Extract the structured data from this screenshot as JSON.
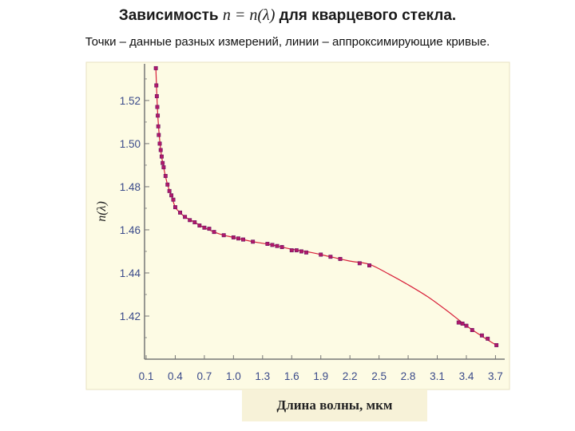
{
  "slide": {
    "title_prefix": "Зависимость ",
    "title_formula": "n = n(λ)",
    "title_suffix": " для кварцевого стекла.",
    "subtitle": "Точки – данные разных измерений, линии – аппроксимирующие кривые."
  },
  "colors": {
    "plot_background": "#fdfbe4",
    "axis": "#777777",
    "curve": "#d8203a",
    "points": "#b0186a",
    "tick_text": "#3a4a8a",
    "xlabel_box": "#f7f2d8"
  },
  "chart_data": {
    "type": "scatter",
    "title": "",
    "xlabel": "Длина волны, мкм",
    "ylabel": "n(λ)",
    "xlim": [
      0.1,
      3.75
    ],
    "ylim": [
      1.4,
      1.537
    ],
    "x_ticks": [
      "0.1",
      "0.4",
      "0.7",
      "1.0",
      "1.3",
      "1.6",
      "1.9",
      "2.2",
      "2.5",
      "2.8",
      "3.1",
      "3.4",
      "3.7"
    ],
    "y_ticks": [
      "1.42",
      "1.44",
      "1.46",
      "1.48",
      "1.50",
      "1.52"
    ],
    "grid": false,
    "series": [
      {
        "kind": "points",
        "x": [
          0.2,
          0.205,
          0.21,
          0.215,
          0.22,
          0.225,
          0.23,
          0.24,
          0.25,
          0.26,
          0.27,
          0.28,
          0.3,
          0.32,
          0.34,
          0.36,
          0.38,
          0.4,
          0.45,
          0.5,
          0.55,
          0.6,
          0.65,
          0.7,
          0.75,
          0.8,
          0.9,
          1.0,
          1.05,
          1.1,
          1.2,
          1.35,
          1.4,
          1.45,
          1.5,
          1.6,
          1.65,
          1.7,
          1.75,
          1.9,
          2.0,
          2.1,
          2.3,
          2.4,
          3.32,
          3.36,
          3.4,
          3.46,
          3.56,
          3.62,
          3.71
        ],
        "y": [
          1.535,
          1.527,
          1.522,
          1.517,
          1.513,
          1.508,
          1.504,
          1.5,
          1.497,
          1.494,
          1.491,
          1.489,
          1.485,
          1.481,
          1.478,
          1.476,
          1.474,
          1.4705,
          1.468,
          1.466,
          1.4645,
          1.4635,
          1.462,
          1.461,
          1.4605,
          1.459,
          1.4575,
          1.4565,
          1.456,
          1.4555,
          1.4545,
          1.4535,
          1.453,
          1.4525,
          1.452,
          1.4505,
          1.4505,
          1.45,
          1.4495,
          1.4485,
          1.4475,
          1.4465,
          1.4445,
          1.4435,
          1.417,
          1.4165,
          1.4155,
          1.4135,
          1.411,
          1.4095,
          1.4065
        ]
      },
      {
        "kind": "fit-curve",
        "x": [
          0.2,
          0.22,
          0.25,
          0.28,
          0.32,
          0.36,
          0.4,
          0.45,
          0.5,
          0.6,
          0.7,
          0.8,
          0.9,
          1.0,
          1.2,
          1.4,
          1.6,
          1.8,
          2.0,
          2.2,
          2.4,
          2.6,
          2.8,
          3.0,
          3.2,
          3.4,
          3.6,
          3.71
        ],
        "y": [
          1.535,
          1.513,
          1.497,
          1.489,
          1.481,
          1.476,
          1.4705,
          1.468,
          1.466,
          1.4635,
          1.461,
          1.459,
          1.4575,
          1.4565,
          1.4545,
          1.453,
          1.451,
          1.4495,
          1.4475,
          1.4455,
          1.444,
          1.4395,
          1.4345,
          1.429,
          1.4225,
          1.4155,
          1.4095,
          1.4065
        ]
      }
    ]
  }
}
